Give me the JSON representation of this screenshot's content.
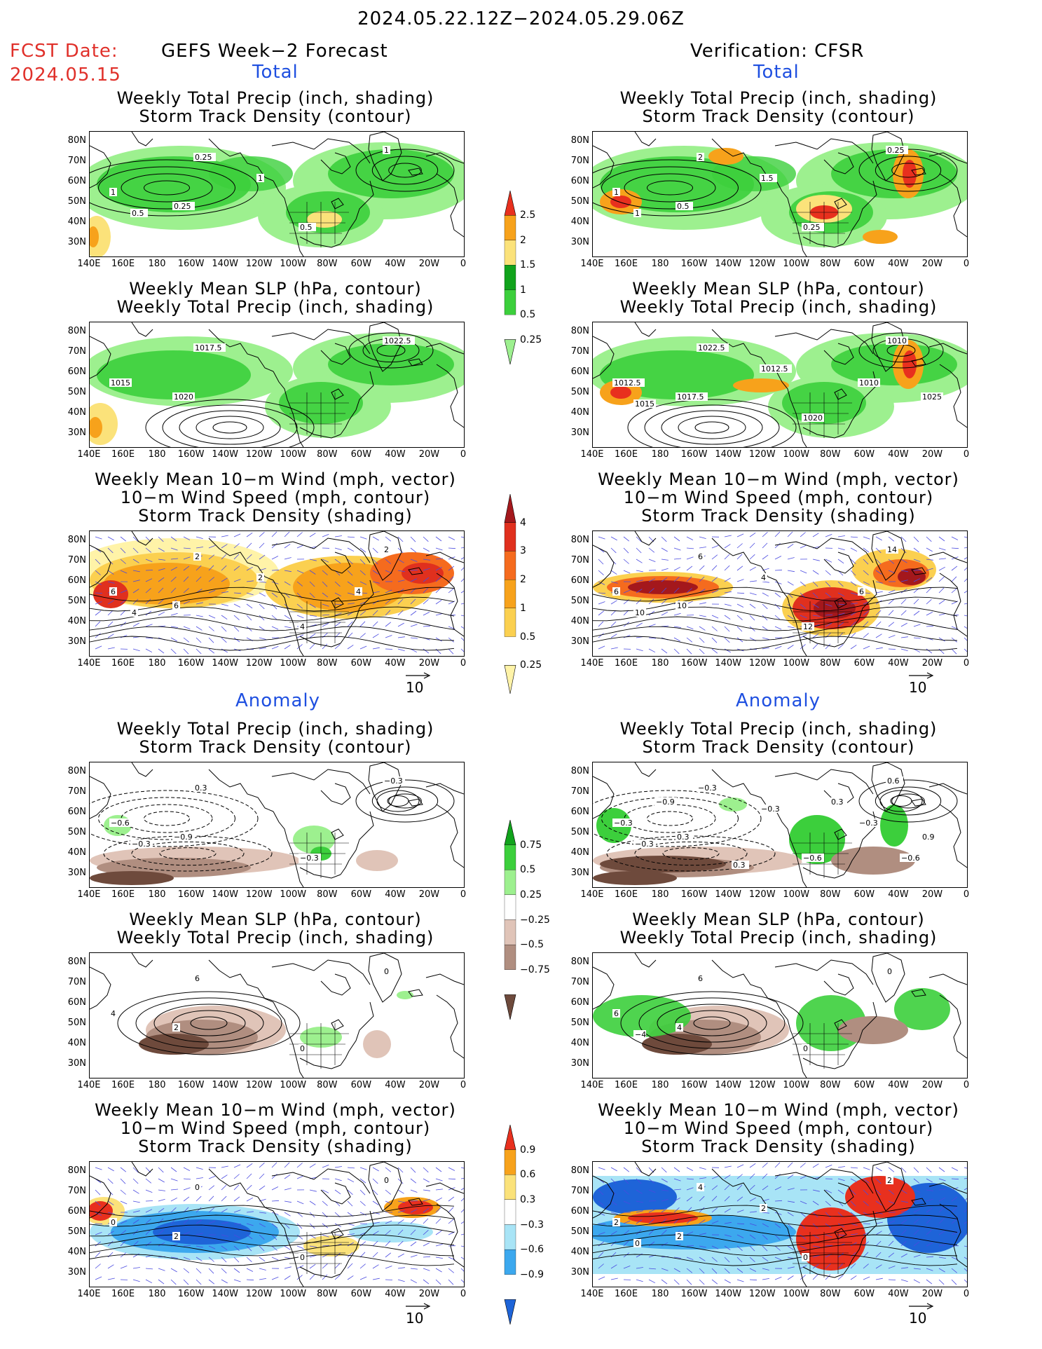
{
  "header": {
    "date_range": "2024.05.22.12Z−2024.05.29.06Z",
    "fcst_label": "FCST Date:",
    "fcst_date": "2024.05.15",
    "left_title": "GEFS Week−2 Forecast",
    "right_title": "Verification: CFSR"
  },
  "sections": {
    "total": "Total",
    "anomaly": "Anomaly"
  },
  "panel_titles": {
    "precip_storm": [
      "Weekly Total Precip (inch, shading)",
      "Storm Track Density (contour)"
    ],
    "slp_precip": [
      "Weekly Mean SLP (hPa, contour)",
      "Weekly Total Precip (inch, shading)"
    ],
    "wind_storm": [
      "Weekly Mean 10−m Wind (mph, vector)",
      "10−m Wind Speed (mph, contour)",
      "Storm Track Density (shading)"
    ]
  },
  "axes": {
    "lat": [
      "80N",
      "70N",
      "60N",
      "50N",
      "40N",
      "30N"
    ],
    "lon": [
      "140E",
      "160E",
      "180",
      "160W",
      "140W",
      "120W",
      "100W",
      "80W",
      "60W",
      "40W",
      "20W",
      "0"
    ]
  },
  "vector_ref": "10",
  "colorbars": {
    "total_precip": {
      "labels": [
        "2.5",
        "2",
        "1.5",
        "1",
        "0.5",
        "0.25"
      ],
      "colors": [
        "#e8301e",
        "#f7a21b",
        "#fbe27a",
        "#11a31c",
        "#3ccf3c",
        "#9df08f"
      ]
    },
    "total_storm": {
      "labels": [
        "4",
        "3",
        "2",
        "1",
        "0.5",
        "0.25"
      ],
      "colors": [
        "#a4181c",
        "#e0301e",
        "#f56b1e",
        "#f7a21b",
        "#fbd050",
        "#fff3a8"
      ]
    },
    "anom_precip": {
      "labels": [
        "0.75",
        "0.5",
        "0.25",
        "−0.25",
        "−0.5",
        "−0.75"
      ],
      "colors": [
        "#11a31c",
        "#3ccf3c",
        "#9df08f",
        "#ffffff",
        "#e0c4b8",
        "#b08e80",
        "#6e4a3c"
      ]
    },
    "anom_storm": {
      "labels": [
        "0.9",
        "0.6",
        "0.3",
        "−0.3",
        "−0.6",
        "−0.9"
      ],
      "colors": [
        "#e8301e",
        "#f7a21b",
        "#fbe27a",
        "#ffffff",
        "#a8e4f6",
        "#3ca8ee",
        "#1e64d8"
      ]
    }
  },
  "contour_labels": {
    "fc_total_precip": [
      "0.25",
      "1",
      "0.25",
      "1",
      "0.5",
      "0.5",
      "1"
    ],
    "vf_total_precip": [
      "2",
      "1",
      "0.5",
      "0.25",
      "0.25",
      "1",
      "1.5"
    ],
    "fc_total_slp": [
      "1017.5",
      "1015",
      "1020",
      "1022.5"
    ],
    "vf_total_slp": [
      "1022.5",
      "1012.5",
      "1017.5",
      "1010",
      "1020",
      "1015",
      "1012.5",
      "1010",
      "1025"
    ],
    "fc_total_wind": [
      "2",
      "6",
      "6",
      "2",
      "4",
      "4",
      "2",
      "4"
    ],
    "vf_total_wind": [
      "6",
      "6",
      "10",
      "14",
      "12",
      "10",
      "4",
      "6"
    ],
    "fc_anom_precip": [
      "0.3",
      "−0.6",
      "−0.9",
      "−0.3",
      "−0.3",
      "−0.3"
    ],
    "vf_anom_precip": [
      "−0.3",
      "−0.3",
      "0.3",
      "0.6",
      "−0.6",
      "−0.3",
      "−0.3",
      "−0.3",
      "0.9",
      "0.3",
      "−0.9",
      "0.3",
      "−0.6"
    ],
    "fc_anom_slp": [
      "6",
      "4",
      "2",
      "0",
      "0"
    ],
    "vf_anom_slp": [
      "6",
      "6",
      "4",
      "0",
      "0",
      "−4"
    ],
    "fc_anom_wind": [
      "0",
      "0",
      "2",
      "0",
      "0"
    ],
    "vf_anom_wind": [
      "4",
      "2",
      "2",
      "2",
      "0",
      "0",
      "2"
    ]
  }
}
